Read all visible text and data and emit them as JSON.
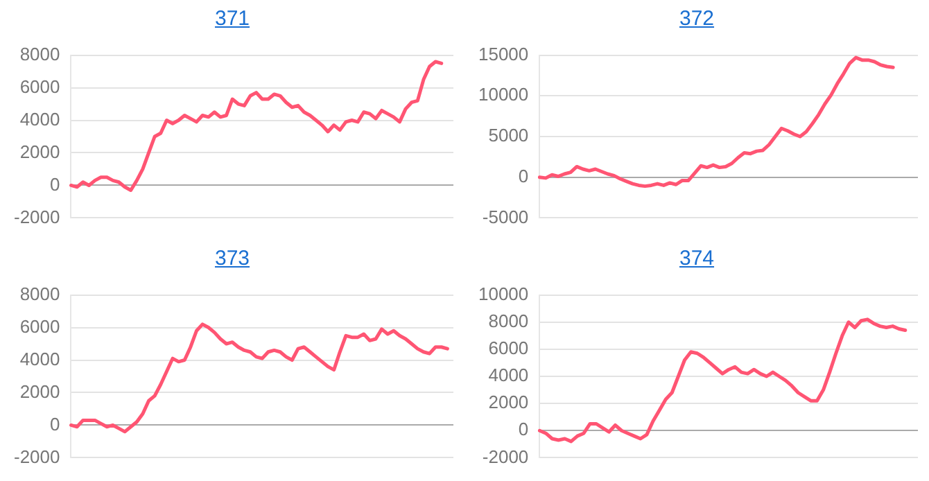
{
  "chart_data": [
    {
      "type": "line",
      "title": "371",
      "categories": [
        null,
        null,
        null,
        null,
        null,
        null,
        null,
        null,
        null,
        null,
        null,
        null,
        null,
        null,
        null,
        null,
        null,
        null,
        null,
        null,
        null,
        null,
        null,
        null,
        null,
        null,
        null,
        null,
        null,
        null,
        null,
        null,
        null,
        null,
        null,
        null,
        null,
        null,
        null,
        null,
        null,
        null,
        null,
        null,
        null,
        null,
        null,
        null,
        null,
        null,
        null,
        null,
        null,
        null,
        null,
        null,
        null,
        null,
        null,
        null,
        null,
        null,
        null,
        null,
        null
      ],
      "series": [
        {
          "color": "#ff5573",
          "values": [
            0,
            -100,
            200,
            0,
            300,
            500,
            500,
            300,
            200,
            -100,
            -300,
            300,
            1000,
            2000,
            3000,
            3200,
            4000,
            3800,
            4000,
            4300,
            4100,
            3900,
            4300,
            4200,
            4500,
            4200,
            4300,
            5300,
            5000,
            4900,
            5500,
            5700,
            5300,
            5300,
            5600,
            5500,
            5100,
            4800,
            4900,
            4500,
            4300,
            4000,
            3700,
            3300,
            3700,
            3400,
            3900,
            4000,
            3900,
            4500,
            4400,
            4100,
            4600,
            4400,
            4200,
            3900,
            4700,
            5100,
            5200,
            6500,
            7300,
            7600,
            7500,
            null,
            null
          ]
        }
      ],
      "ylim": [
        -2000,
        8000
      ],
      "yticks": [
        -2000,
        0,
        2000,
        4000,
        6000,
        8000
      ],
      "grid": "y",
      "tick_labels": "y",
      "marker": "none",
      "line_style": "solid"
    },
    {
      "type": "line",
      "title": "372",
      "categories": [
        null,
        null,
        null,
        null,
        null,
        null,
        null,
        null,
        null,
        null,
        null,
        null,
        null,
        null,
        null,
        null,
        null,
        null,
        null,
        null,
        null,
        null,
        null,
        null,
        null,
        null,
        null,
        null,
        null,
        null,
        null,
        null,
        null,
        null,
        null,
        null,
        null,
        null,
        null,
        null,
        null,
        null,
        null,
        null,
        null,
        null,
        null,
        null,
        null,
        null,
        null,
        null,
        null,
        null,
        null,
        null,
        null,
        null,
        null,
        null,
        null,
        null
      ],
      "series": [
        {
          "color": "#ff5573",
          "values": [
            0,
            -100,
            300,
            100,
            400,
            600,
            1300,
            1000,
            800,
            1000,
            700,
            400,
            200,
            -200,
            -500,
            -800,
            -1000,
            -1100,
            -1000,
            -800,
            -1000,
            -700,
            -900,
            -400,
            -400,
            500,
            1400,
            1200,
            1500,
            1200,
            1300,
            1700,
            2400,
            3000,
            2900,
            3200,
            3300,
            4000,
            5000,
            6000,
            5700,
            5300,
            5000,
            5600,
            6600,
            7700,
            9000,
            10100,
            11500,
            12700,
            14000,
            14700,
            14400,
            14400,
            14200,
            13800,
            13600,
            13500,
            null,
            null,
            null,
            null
          ]
        }
      ],
      "ylim": [
        -5000,
        15000
      ],
      "yticks": [
        -5000,
        0,
        5000,
        10000,
        15000
      ],
      "grid": "y",
      "tick_labels": "y",
      "marker": "none",
      "line_style": "solid"
    },
    {
      "type": "line",
      "title": "373",
      "categories": [
        null,
        null,
        null,
        null,
        null,
        null,
        null,
        null,
        null,
        null,
        null,
        null,
        null,
        null,
        null,
        null,
        null,
        null,
        null,
        null,
        null,
        null,
        null,
        null,
        null,
        null,
        null,
        null,
        null,
        null,
        null,
        null,
        null,
        null,
        null,
        null,
        null,
        null,
        null,
        null,
        null,
        null,
        null,
        null,
        null,
        null,
        null,
        null,
        null,
        null,
        null,
        null,
        null,
        null,
        null,
        null,
        null,
        null,
        null,
        null,
        null,
        null,
        null,
        null,
        null
      ],
      "series": [
        {
          "color": "#ff5573",
          "values": [
            0,
            -100,
            300,
            300,
            300,
            100,
            -100,
            0,
            -200,
            -400,
            -100,
            200,
            700,
            1500,
            1800,
            2500,
            3300,
            4100,
            3900,
            4000,
            4800,
            5800,
            6200,
            6000,
            5700,
            5300,
            5000,
            5100,
            4800,
            4600,
            4500,
            4200,
            4100,
            4500,
            4600,
            4500,
            4200,
            4000,
            4700,
            4800,
            4500,
            4200,
            3900,
            3600,
            3400,
            4500,
            5500,
            5400,
            5400,
            5600,
            5200,
            5300,
            5900,
            5600,
            5800,
            5500,
            5300,
            5000,
            4700,
            4500,
            4400,
            4800,
            4800,
            4700,
            null
          ]
        }
      ],
      "ylim": [
        -2000,
        8000
      ],
      "yticks": [
        -2000,
        0,
        2000,
        4000,
        6000,
        8000
      ],
      "grid": "y",
      "tick_labels": "y",
      "marker": "none",
      "line_style": "solid"
    },
    {
      "type": "line",
      "title": "374",
      "categories": [
        null,
        null,
        null,
        null,
        null,
        null,
        null,
        null,
        null,
        null,
        null,
        null,
        null,
        null,
        null,
        null,
        null,
        null,
        null,
        null,
        null,
        null,
        null,
        null,
        null,
        null,
        null,
        null,
        null,
        null,
        null,
        null,
        null,
        null,
        null,
        null,
        null,
        null,
        null,
        null,
        null,
        null,
        null,
        null,
        null,
        null,
        null,
        null,
        null,
        null,
        null,
        null,
        null,
        null,
        null,
        null,
        null,
        null,
        null,
        null,
        null
      ],
      "series": [
        {
          "color": "#ff5573",
          "values": [
            0,
            -200,
            -600,
            -700,
            -600,
            -800,
            -400,
            -200,
            500,
            500,
            200,
            -100,
            400,
            0,
            -200,
            -400,
            -600,
            -300,
            700,
            1500,
            2300,
            2800,
            4000,
            5200,
            5800,
            5700,
            5400,
            5000,
            4600,
            4200,
            4500,
            4700,
            4300,
            4200,
            4500,
            4200,
            4000,
            4300,
            4000,
            3700,
            3300,
            2800,
            2500,
            2200,
            2200,
            3000,
            4300,
            5700,
            7000,
            8000,
            7600,
            8100,
            8200,
            7900,
            7700,
            7600,
            7700,
            7500,
            7400,
            null,
            null
          ]
        }
      ],
      "ylim": [
        -2000,
        10000
      ],
      "yticks": [
        -2000,
        0,
        2000,
        4000,
        6000,
        8000,
        10000
      ],
      "grid": "y",
      "tick_labels": "y",
      "marker": "none",
      "line_style": "solid"
    }
  ]
}
